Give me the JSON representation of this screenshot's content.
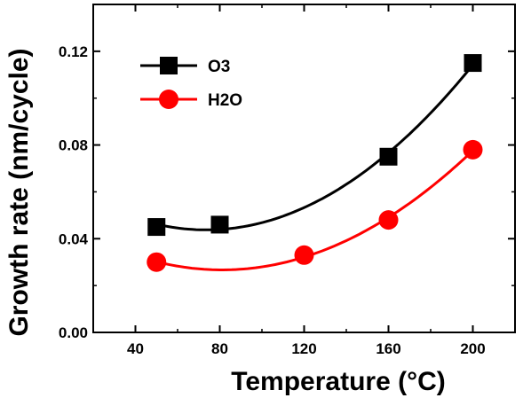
{
  "chart_data": {
    "type": "line",
    "xlabel": "Temperature (°C)",
    "ylabel": "Growth rate (nm/cycle)",
    "xlim": [
      20,
      220
    ],
    "ylim": [
      0.0,
      0.14
    ],
    "xticks": [
      "40",
      "80",
      "120",
      "160",
      "200"
    ],
    "yticks": [
      "0.00",
      "0.04",
      "0.08",
      "0.12"
    ],
    "grid": false,
    "legend_position": "top-left",
    "series": [
      {
        "name": "O3",
        "marker": "square",
        "color": "#000000",
        "x": [
          50,
          80,
          160,
          200
        ],
        "y": [
          0.045,
          0.046,
          0.075,
          0.115
        ]
      },
      {
        "name": "H2O",
        "marker": "circle",
        "color": "#ff0000",
        "x": [
          50,
          120,
          160,
          200
        ],
        "y": [
          0.03,
          0.033,
          0.048,
          0.078
        ]
      }
    ]
  }
}
